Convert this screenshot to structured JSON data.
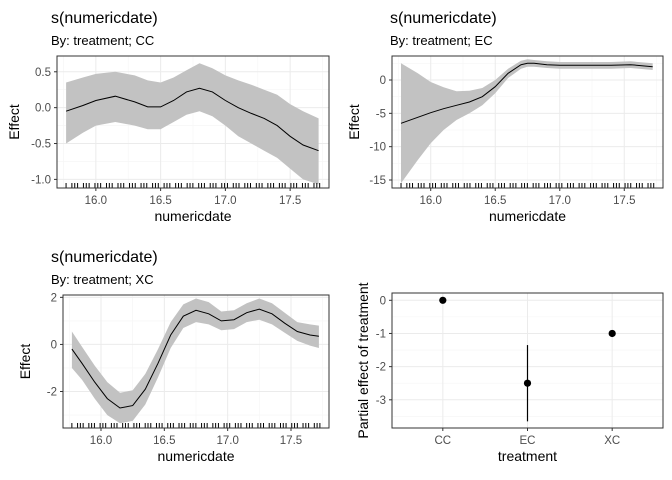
{
  "colors": {
    "panel_border": "#333333",
    "grid_major": "#ebebeb",
    "grid_minor": "#f5f5f5",
    "ribbon": "#c2c2c2",
    "line": "#000000",
    "tick_text": "#4d4d4d"
  },
  "chart_data": [
    {
      "type": "area",
      "title": "s(numericdate)",
      "subtitle": "By: treatment; CC",
      "xlabel": "numericdate",
      "ylabel": "Effect",
      "xlim": [
        15.7,
        17.8
      ],
      "ylim": [
        -1.12,
        0.72
      ],
      "xticks": [
        16.0,
        16.5,
        17.0,
        17.5
      ],
      "xtick_labels": [
        "16.0",
        "16.5",
        "17.0",
        "17.5"
      ],
      "yticks": [
        -1.0,
        -0.5,
        0.0,
        0.5
      ],
      "ytick_labels": [
        "-1.0",
        "-0.5",
        "0.0",
        "0.5"
      ],
      "grid": true,
      "rug": true,
      "x": [
        15.77,
        15.9,
        16.0,
        16.15,
        16.3,
        16.4,
        16.5,
        16.6,
        16.7,
        16.8,
        16.9,
        17.0,
        17.1,
        17.2,
        17.3,
        17.4,
        17.5,
        17.6,
        17.72
      ],
      "fit": [
        -0.05,
        0.03,
        0.1,
        0.16,
        0.08,
        0.01,
        0.01,
        0.1,
        0.22,
        0.27,
        0.22,
        0.1,
        0.0,
        -0.08,
        -0.15,
        -0.25,
        -0.4,
        -0.52,
        -0.6
      ],
      "lower": [
        -0.5,
        -0.35,
        -0.25,
        -0.2,
        -0.25,
        -0.3,
        -0.3,
        -0.2,
        -0.1,
        -0.05,
        -0.12,
        -0.25,
        -0.4,
        -0.5,
        -0.6,
        -0.7,
        -0.85,
        -1.0,
        -1.07
      ],
      "upper": [
        0.35,
        0.42,
        0.47,
        0.5,
        0.45,
        0.38,
        0.35,
        0.42,
        0.52,
        0.62,
        0.55,
        0.45,
        0.38,
        0.32,
        0.25,
        0.18,
        0.05,
        -0.05,
        -0.15
      ]
    },
    {
      "type": "area",
      "title": "s(numericdate)",
      "subtitle": "By: treatment; EC",
      "xlabel": "numericdate",
      "ylabel": "Effect",
      "xlim": [
        15.7,
        17.8
      ],
      "ylim": [
        -16.2,
        3.6
      ],
      "xticks": [
        16.0,
        16.5,
        17.0,
        17.5
      ],
      "xtick_labels": [
        "16.0",
        "16.5",
        "17.0",
        "17.5"
      ],
      "yticks": [
        -15,
        -10,
        -5,
        0
      ],
      "ytick_labels": [
        "-15",
        "-10",
        "-5",
        "0"
      ],
      "grid": true,
      "rug": true,
      "x": [
        15.77,
        15.9,
        16.0,
        16.1,
        16.2,
        16.3,
        16.4,
        16.5,
        16.6,
        16.7,
        16.75,
        16.8,
        16.9,
        17.0,
        17.2,
        17.4,
        17.55,
        17.72
      ],
      "fit": [
        -6.5,
        -5.6,
        -4.9,
        -4.3,
        -3.8,
        -3.3,
        -2.5,
        -1.0,
        1.0,
        2.3,
        2.5,
        2.5,
        2.3,
        2.2,
        2.2,
        2.2,
        2.3,
        2.0
      ],
      "lower": [
        -15.5,
        -12.0,
        -9.5,
        -7.5,
        -6.0,
        -5.0,
        -3.8,
        -2.0,
        0.3,
        1.7,
        2.0,
        2.0,
        1.8,
        1.7,
        1.7,
        1.7,
        1.8,
        1.5
      ],
      "upper": [
        2.5,
        1.0,
        -0.3,
        -1.1,
        -1.7,
        -1.6,
        -1.2,
        0.0,
        1.7,
        2.9,
        3.1,
        3.0,
        2.8,
        2.7,
        2.7,
        2.7,
        2.8,
        2.5
      ]
    },
    {
      "type": "area",
      "title": "s(numericdate)",
      "subtitle": "By: treatment; XC",
      "xlabel": "numericdate",
      "ylabel": "Effect",
      "xlim": [
        15.7,
        17.8
      ],
      "ylim": [
        -3.55,
        2.1
      ],
      "xticks": [
        16.0,
        16.5,
        17.0,
        17.5
      ],
      "xtick_labels": [
        "16.0",
        "16.5",
        "17.0",
        "17.5"
      ],
      "yticks": [
        -2,
        0,
        2
      ],
      "ytick_labels": [
        "-2",
        "0",
        "2"
      ],
      "grid": true,
      "rug": true,
      "x": [
        15.77,
        15.85,
        15.95,
        16.05,
        16.15,
        16.25,
        16.35,
        16.45,
        16.55,
        16.65,
        16.75,
        16.85,
        16.95,
        17.05,
        17.15,
        17.25,
        17.35,
        17.45,
        17.55,
        17.65,
        17.72
      ],
      "fit": [
        -0.2,
        -0.8,
        -1.6,
        -2.3,
        -2.7,
        -2.6,
        -1.9,
        -0.8,
        0.4,
        1.2,
        1.45,
        1.3,
        1.0,
        1.05,
        1.35,
        1.5,
        1.3,
        0.9,
        0.55,
        0.4,
        0.35
      ],
      "lower": [
        -1.0,
        -1.5,
        -2.3,
        -3.0,
        -3.35,
        -3.25,
        -2.55,
        -1.4,
        -0.15,
        0.7,
        0.95,
        0.85,
        0.6,
        0.65,
        0.95,
        1.05,
        0.85,
        0.5,
        0.15,
        -0.05,
        -0.15
      ],
      "upper": [
        0.55,
        -0.1,
        -0.9,
        -1.6,
        -2.05,
        -1.95,
        -1.25,
        -0.2,
        0.95,
        1.7,
        1.95,
        1.8,
        1.4,
        1.45,
        1.75,
        1.95,
        1.75,
        1.35,
        0.95,
        0.85,
        0.8
      ]
    },
    {
      "type": "scatter",
      "title": "",
      "xlabel": "treatment",
      "ylabel": "Partial effect of treatment",
      "categories": [
        "CC",
        "EC",
        "XC"
      ],
      "ylim": [
        -3.85,
        0.22
      ],
      "yticks": [
        0,
        -1,
        -2,
        -3
      ],
      "ytick_labels": [
        "0",
        "-1",
        "-2",
        "-3"
      ],
      "grid": true,
      "values": [
        0,
        -2.5,
        -1.0
      ],
      "lower": [
        0,
        -3.65,
        -1.05
      ],
      "upper": [
        0,
        -1.35,
        -0.95
      ]
    }
  ]
}
